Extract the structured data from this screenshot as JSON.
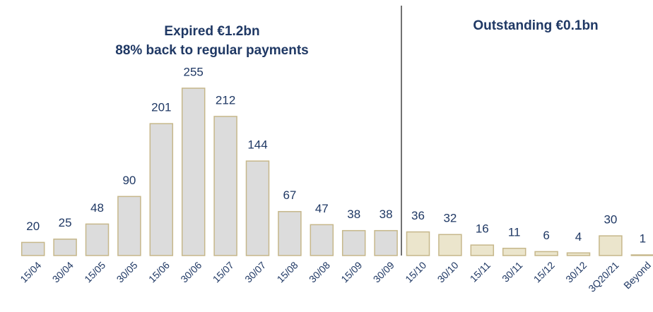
{
  "chart_data": {
    "type": "bar",
    "annotations": [
      "Expired €1.2bn",
      "88% back to regular payments",
      "Outstanding €0.1bn"
    ],
    "categories": [
      "15/04",
      "30/04",
      "15/05",
      "30/05",
      "15/06",
      "30/06",
      "15/07",
      "30/07",
      "15/08",
      "30/08",
      "15/09",
      "30/09",
      "15/10",
      "30/10",
      "15/11",
      "30/11",
      "15/12",
      "30/12",
      "3Q20/21",
      "Beyond"
    ],
    "values": [
      20,
      25,
      48,
      90,
      201,
      255,
      212,
      144,
      67,
      47,
      38,
      38,
      36,
      32,
      16,
      11,
      6,
      4,
      30,
      1
    ],
    "colors": [
      "#dcdcdc",
      "#dcdcdc",
      "#dcdcdc",
      "#dcdcdc",
      "#dcdcdc",
      "#dcdcdc",
      "#dcdcdc",
      "#dcdcdc",
      "#dcdcdc",
      "#dcdcdc",
      "#dcdcdc",
      "#dcdcdc",
      "#ebe5cc",
      "#ebe5cc",
      "#ebe5cc",
      "#ebe5cc",
      "#ebe5cc",
      "#ebe5cc",
      "#ebe5cc",
      "#ebe5cc"
    ],
    "edgecolor": "#c6b78a",
    "ylim": [
      0,
      270
    ]
  }
}
